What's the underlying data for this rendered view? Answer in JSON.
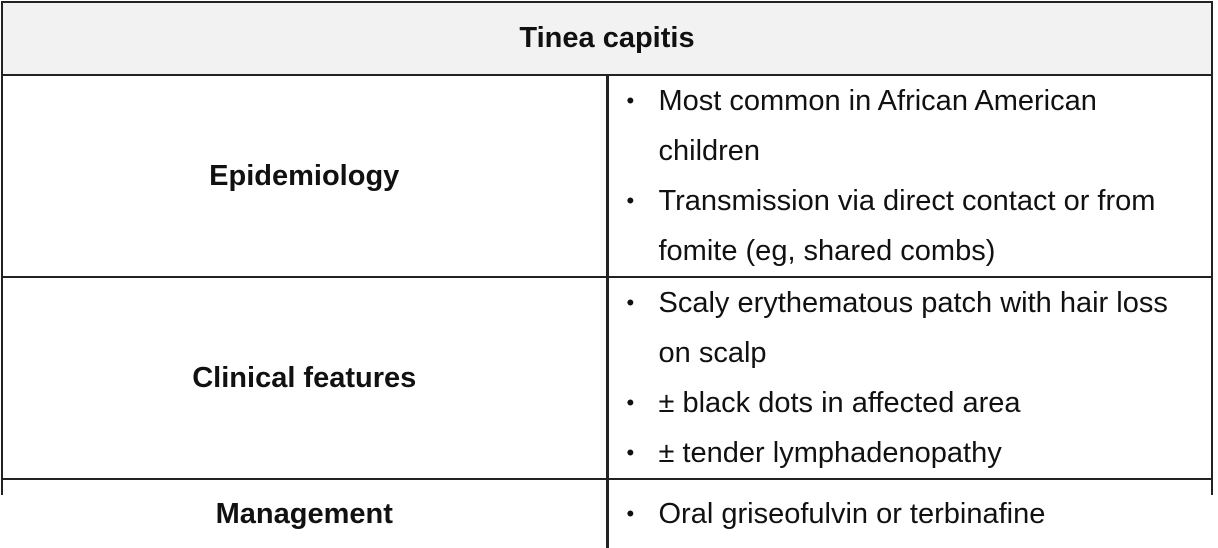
{
  "table": {
    "title": "Tinea capitis",
    "rows": [
      {
        "label": "Epidemiology",
        "items": [
          "Most common in African American children",
          "Transmission via direct contact or from fomite (eg, shared combs)"
        ]
      },
      {
        "label": "Clinical features",
        "items": [
          "Scaly erythematous patch with hair loss on scalp",
          "± black dots in affected area",
          "± tender lymphadenopathy"
        ]
      },
      {
        "label": "Management",
        "items": [
          "Oral griseofulvin or terbinafine"
        ]
      }
    ]
  }
}
